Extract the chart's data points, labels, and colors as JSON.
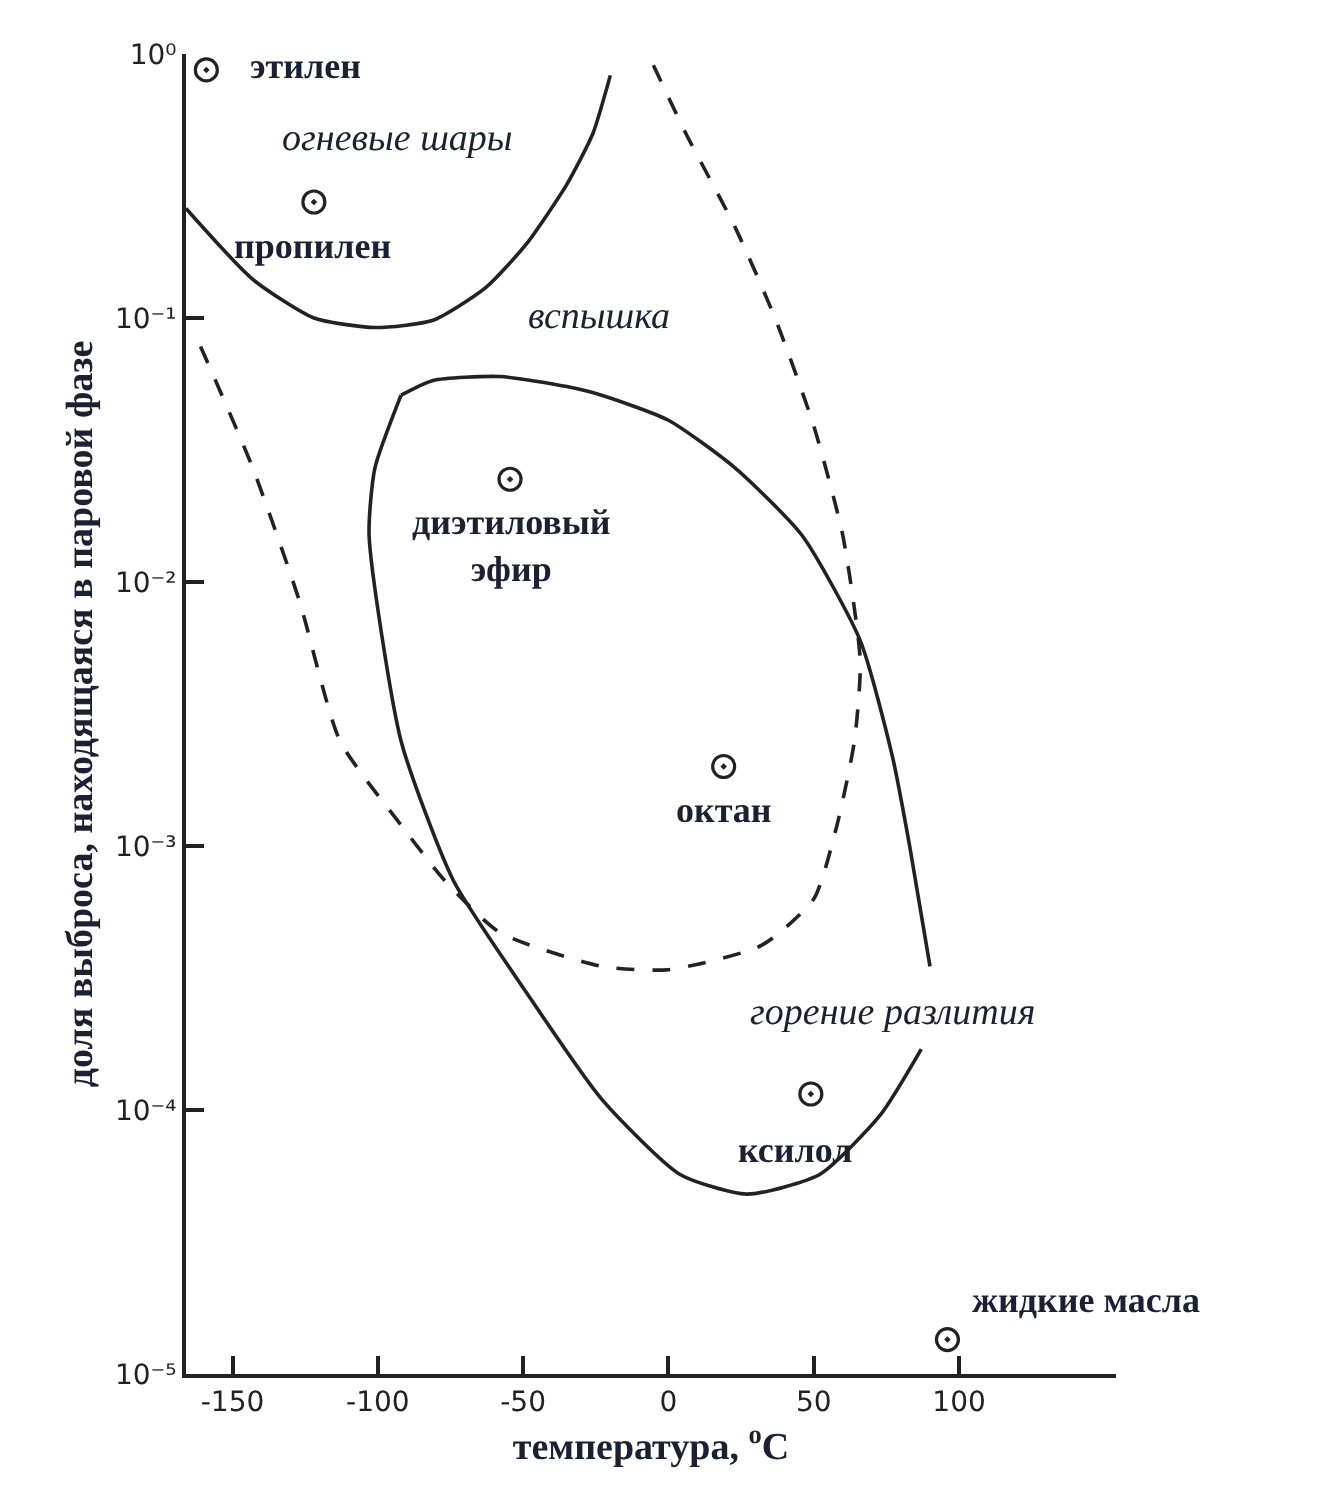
{
  "chart_data": {
    "type": "scatter",
    "xlabel": "температура, $^{o}$C",
    "ylabel": "доля выброса, находящаяся в паровой фазе",
    "xlim": [
      -166,
      154
    ],
    "xticks": [
      -150,
      -100,
      -50,
      0,
      50,
      100
    ],
    "ylim": [
      1e-05,
      1
    ],
    "yticks": [
      {
        "value": 1,
        "label": "10⁰"
      },
      {
        "value": 0.1,
        "label": "10⁻¹"
      },
      {
        "value": 0.01,
        "label": "10⁻²"
      },
      {
        "value": 0.001,
        "label": "10⁻³"
      },
      {
        "value": 0.0001,
        "label": "10⁻⁴"
      },
      {
        "value": 1e-05,
        "label": "10⁻⁵"
      }
    ],
    "log": "y",
    "legend": false,
    "marker": "circle",
    "series": [
      {
        "color": "#222222",
        "x": [
          -159,
          -122,
          -54.5,
          19,
          49,
          96
        ],
        "values": [
          0.87,
          0.275,
          0.0245,
          0.002,
          0.000115,
          1.35e-05
        ]
      },
      {
        "type": "line",
        "color": "#222222",
        "line_style": "solid",
        "marker": "none",
        "x": [
          -166,
          -143,
          -122,
          -101,
          -81,
          -63,
          -49,
          -35,
          -26,
          -20
        ],
        "values": [
          0.26,
          0.14,
          0.1,
          0.092,
          0.098,
          0.13,
          0.19,
          0.32,
          0.5,
          0.83
        ]
      },
      {
        "type": "line",
        "color": "#222222",
        "line_style": "dashed",
        "marker": "none",
        "x": [
          -161,
          -157,
          -143,
          -127,
          -113,
          -92,
          -77,
          -58,
          -23,
          0,
          32,
          50,
          58,
          64,
          66,
          60,
          50,
          37,
          23,
          6,
          -7
        ],
        "values": [
          0.078,
          0.062,
          0.027,
          0.0085,
          0.0025,
          0.0012,
          0.00074,
          0.00047,
          0.00035,
          0.00034,
          0.00042,
          0.00063,
          0.0012,
          0.0025,
          0.005,
          0.015,
          0.039,
          0.098,
          0.22,
          0.5,
          1
        ]
      },
      {
        "type": "line",
        "color": "#222222",
        "line_style": "solid",
        "marker": "none",
        "x": [
          -92,
          -81,
          -58,
          -35,
          -23,
          0,
          23,
          46,
          66,
          77,
          83,
          90,
          null,
          87,
          73,
          52,
          27,
          4,
          -23,
          -49,
          -74,
          -92,
          -103,
          -101,
          -92
        ],
        "values": [
          0.051,
          0.058,
          0.06,
          0.055,
          0.051,
          0.041,
          0.027,
          0.015,
          0.006,
          0.0022,
          0.001,
          0.00035,
          null,
          0.00017,
          9.6e-05,
          5.7e-05,
          4.8e-05,
          5.7e-05,
          0.00011,
          0.00028,
          0.00074,
          0.0025,
          0.015,
          0.027,
          0.051
        ]
      }
    ],
    "annotations": [
      {
        "text": "этилен",
        "x": -159,
        "y": 0.87
      },
      {
        "text": "пропилен",
        "x": -122,
        "y": 0.275
      },
      {
        "text": "диэтиловый\nэфир",
        "x": -54.5,
        "y": 0.0245
      },
      {
        "text": "октан",
        "x": 19,
        "y": 0.002
      },
      {
        "text": "ксилол",
        "x": 49,
        "y": 0.000115
      },
      {
        "text": "жидкие масла",
        "x": 96,
        "y": 1.35e-05
      },
      "огневые шары",
      "вспышка",
      "горение разлития"
    ]
  }
}
